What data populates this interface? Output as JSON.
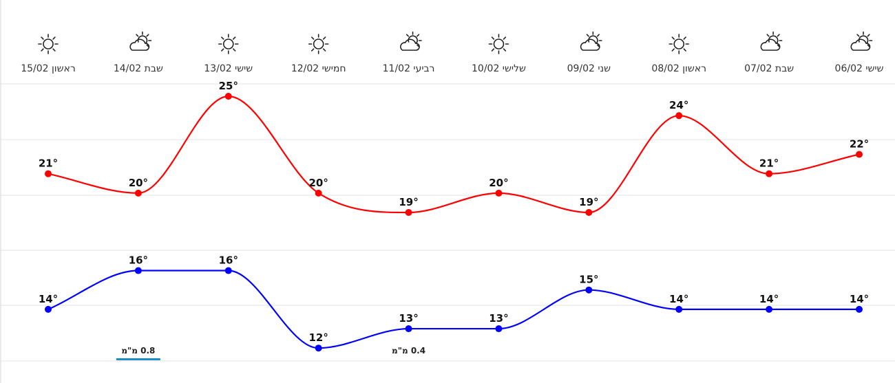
{
  "chart_data": {
    "type": "line",
    "categories": [
      "06/02",
      "07/02",
      "08/02",
      "09/02",
      "10/02",
      "11/02",
      "12/02",
      "13/02",
      "14/02",
      "15/02"
    ],
    "day_labels": [
      "שישי 06/02",
      "שבת 07/02",
      "ראשון 08/02",
      "שני 09/02",
      "שלישי 10/02",
      "רביעי 11/02",
      "חמישי 12/02",
      "שישי 13/02",
      "שבת 14/02",
      "ראשון 15/02"
    ],
    "icons": [
      "partly-cloudy-icon",
      "partly-cloudy-icon",
      "sun-icon",
      "partly-cloudy-icon",
      "sun-icon",
      "partly-cloudy-icon",
      "sun-icon",
      "sun-icon",
      "partly-cloudy-icon",
      "sun-icon"
    ],
    "series": [
      {
        "values": [
          22,
          21,
          24,
          19,
          20,
          19,
          20,
          25,
          20,
          21
        ],
        "color": "#ff0000"
      },
      {
        "values": [
          14,
          14,
          14,
          15,
          13,
          13,
          12,
          16,
          16,
          14
        ],
        "color": "#0000ff"
      }
    ],
    "value_labels": {
      "max": [
        "22°",
        "21°",
        "24°",
        "19°",
        "20°",
        "19°",
        "20°",
        "25°",
        "20°",
        "21°"
      ],
      "min": [
        "14°",
        "14°",
        "14°",
        "15°",
        "13°",
        "13°",
        "12°",
        "16°",
        "16°",
        "14°"
      ]
    },
    "precipitation": [
      {
        "index": 8,
        "value": 0.8,
        "label": "0.8 מ\"מ",
        "bar": true
      },
      {
        "index": 5,
        "value": 0.4,
        "label": "0.4 מ\"מ",
        "bar": false
      }
    ],
    "precip_color": "#1e8fc6",
    "ylim": [
      9,
      27
    ],
    "grid": true,
    "title": "",
    "xlabel": "",
    "ylabel": ""
  }
}
